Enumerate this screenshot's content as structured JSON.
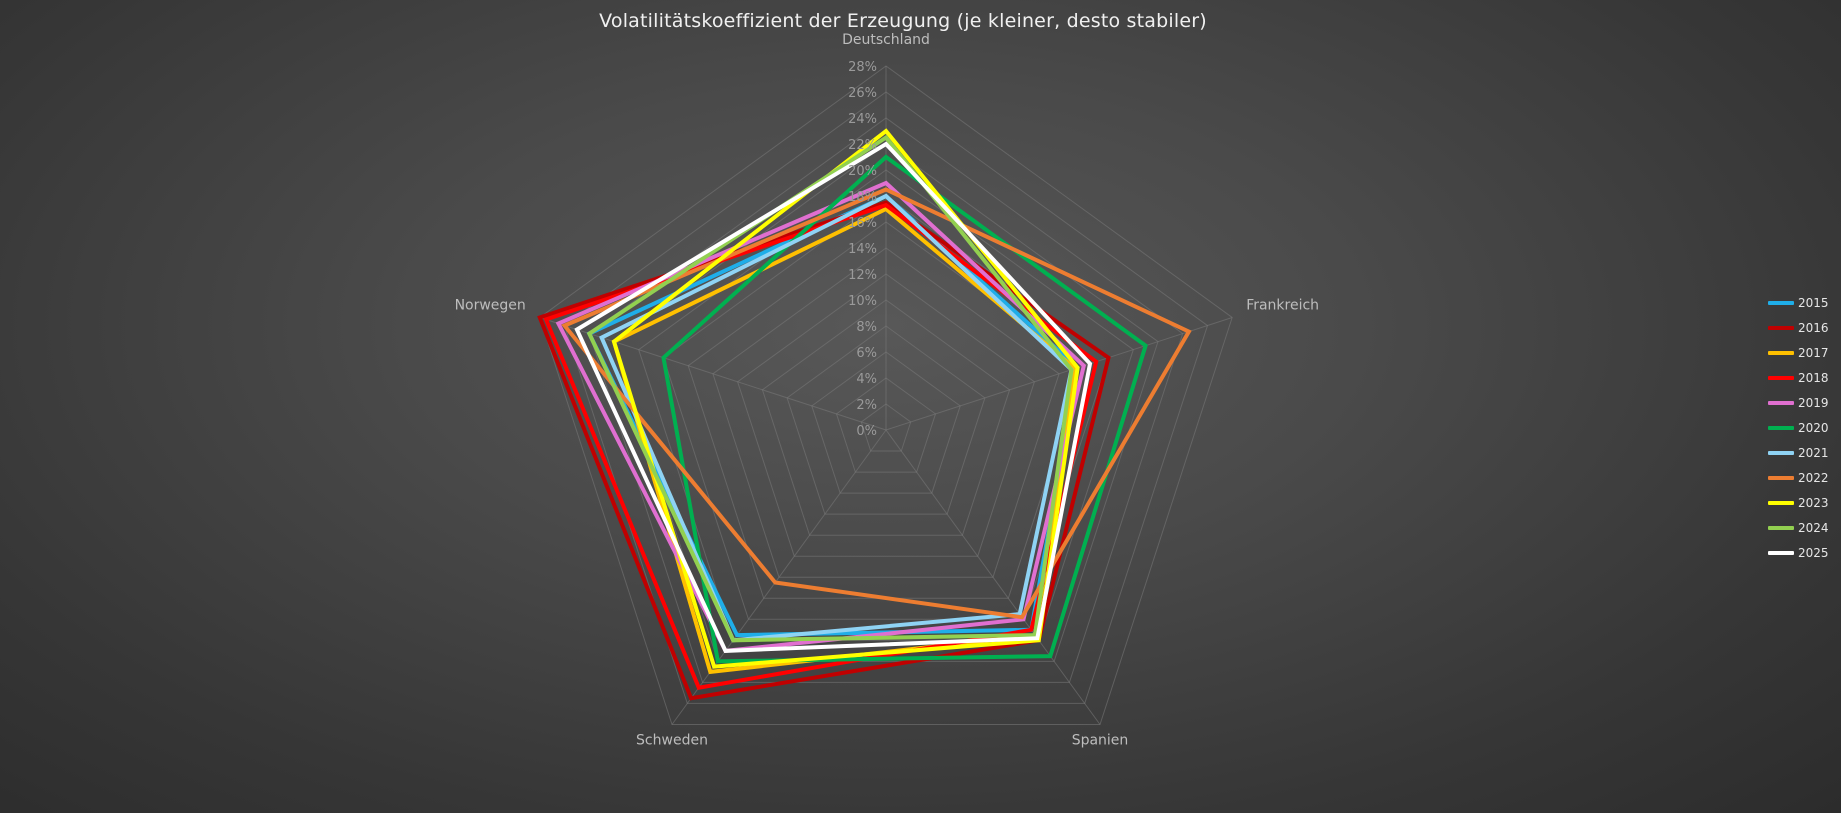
{
  "chart_data": {
    "type": "radar",
    "title": "Volatilitätskoeffizient der Erzeugung  (je kleiner, desto stabiler)",
    "categories": [
      "Deutschland",
      "Frankreich",
      "Spanien",
      "Schweden",
      "Norwegen"
    ],
    "range": [
      0,
      28
    ],
    "ticks": [
      "0%",
      "2%",
      "4%",
      "6%",
      "8%",
      "10%",
      "12%",
      "14%",
      "16%",
      "18%",
      "20%",
      "22%",
      "24%",
      "26%",
      "28%"
    ],
    "tick_values": [
      0,
      2,
      4,
      6,
      8,
      10,
      12,
      14,
      16,
      18,
      20,
      22,
      24,
      26,
      28
    ],
    "grid": true,
    "legend_position": "right",
    "series": [
      {
        "name": "2015",
        "color": "#1faee9",
        "values": [
          18.0,
          15.5,
          19.0,
          19.5,
          24.0
        ]
      },
      {
        "name": "2016",
        "color": "#c00000",
        "values": [
          17.5,
          18.0,
          20.0,
          25.5,
          28.0
        ]
      },
      {
        "name": "2017",
        "color": "#ffc000",
        "values": [
          17.0,
          15.3,
          19.5,
          23.0,
          22.0
        ]
      },
      {
        "name": "2018",
        "color": "#ff0000",
        "values": [
          17.3,
          17.0,
          19.0,
          24.5,
          27.5
        ]
      },
      {
        "name": "2019",
        "color": "#e06fd0",
        "values": [
          19.0,
          16.0,
          18.0,
          21.0,
          26.5
        ]
      },
      {
        "name": "2020",
        "color": "#00b050",
        "values": [
          21.0,
          21.0,
          21.5,
          22.0,
          18.0
        ]
      },
      {
        "name": "2021",
        "color": "#8fd3f4",
        "values": [
          18.0,
          15.0,
          17.5,
          20.0,
          23.0
        ]
      },
      {
        "name": "2022",
        "color": "#ed7d31",
        "values": [
          18.5,
          24.5,
          17.8,
          14.5,
          26.0
        ]
      },
      {
        "name": "2023",
        "color": "#ffff00",
        "values": [
          23.0,
          15.5,
          20.0,
          22.5,
          22.0
        ]
      },
      {
        "name": "2024",
        "color": "#92d050",
        "values": [
          22.5,
          15.0,
          19.5,
          20.0,
          24.0
        ]
      },
      {
        "name": "2025",
        "color": "#ffffff",
        "values": [
          22.0,
          16.5,
          19.8,
          21.0,
          25.0
        ]
      }
    ]
  }
}
